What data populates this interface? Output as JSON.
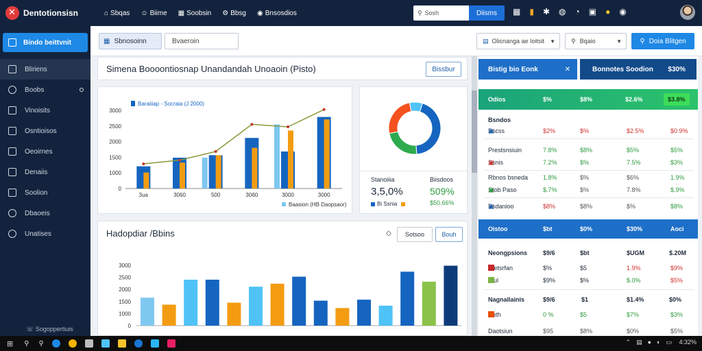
{
  "app": {
    "title": "Dentotionsisn"
  },
  "topnav": [
    {
      "label": "Sbqas",
      "icon": "home-icon"
    },
    {
      "label": "Biime",
      "icon": "user-icon"
    },
    {
      "label": "Soobsin",
      "icon": "grid-icon"
    },
    {
      "label": "Bbsg",
      "icon": "gear-icon"
    },
    {
      "label": "Bnsosdios",
      "icon": "bell-icon"
    }
  ],
  "topsearch": {
    "placeholder": "Sosh",
    "button": "Diisms"
  },
  "sidebar": {
    "primary": "Bindo beittvnit",
    "items": [
      {
        "label": "Bliriens",
        "icon": "list-icon"
      },
      {
        "label": "Boobs",
        "icon": "clock-icon"
      },
      {
        "label": "Vinoisits",
        "icon": "doc-icon"
      },
      {
        "label": "Osntioisos",
        "icon": "folder-icon"
      },
      {
        "label": "Oeoirnes",
        "icon": "chart-icon"
      },
      {
        "label": "Denaiis",
        "icon": "table-icon"
      },
      {
        "label": "Soolion",
        "icon": "calendar-icon"
      },
      {
        "label": "Dbaoeis",
        "icon": "link-icon"
      },
      {
        "label": "Unatises",
        "icon": "settings-icon"
      }
    ],
    "footer": "Sogoppertiuis"
  },
  "header": {
    "tab_label": "Sbnosoinn",
    "search_value": "Bvaeroin",
    "select1": "Olicnanga ae Ioitsit",
    "select2": "Bqaio",
    "action": "Doia Blitgen"
  },
  "overview": {
    "title": "Simena Boooontiosnap Unandandah Unoaoin (Pisto)",
    "button": "Bissbur"
  },
  "chart_data": [
    {
      "type": "bar",
      "title": "",
      "legend": "Baraiiiap - Socraia (J 2000)",
      "bottom_legend": "Baasion (HB Daopsaor)",
      "categories": [
        "3ua",
        "3060",
        "500",
        "3060",
        "3000",
        "3000"
      ],
      "yticks": [
        "3000",
        "2500",
        "2000",
        "1500",
        "1000",
        "0"
      ],
      "ylim": [
        0,
        3500
      ],
      "series": [
        {
          "name": "",
          "color": "#1565c0",
          "values": [
            900,
            1250,
            1350,
            2050,
            1500,
            2900
          ]
        },
        {
          "name": "",
          "color": "#f39c12",
          "values": [
            650,
            1050,
            1350,
            1650,
            2350,
            2800
          ]
        },
        {
          "name": "",
          "color": "#7ec8f0",
          "values": [
            0,
            0,
            1250,
            0,
            2600,
            0
          ]
        }
      ],
      "line": {
        "color": "#8a9a3a",
        "values": [
          1000,
          1150,
          1500,
          2600,
          2500,
          3200
        ]
      }
    },
    {
      "type": "pie",
      "slices": [
        {
          "color": "#1565c0",
          "value": 44
        },
        {
          "color": "#2eaa4f",
          "value": 23
        },
        {
          "color": "#f4511e",
          "value": 25
        },
        {
          "color": "#4fc3f7",
          "value": 8
        }
      ],
      "stat_left_label": "Stanoiiia",
      "stat_left_value": "3,5,0%",
      "stat_left_legend": "Bi Ssnia",
      "stat_right_label": "Biisdoos",
      "stat_right_value": "509%",
      "stat_right_sub": "$50.66%"
    },
    {
      "type": "bar",
      "title": "Hadopdiar /Bbins",
      "yticks": [
        "3000",
        "2500",
        "2000",
        "1500",
        "1000",
        "0"
      ],
      "ylim": [
        0,
        3500
      ],
      "values": [
        1400,
        1050,
        2300,
        2300,
        1150,
        1950,
        2100,
        2450,
        1250,
        880,
        1300,
        1000,
        2700,
        2200,
        3000
      ],
      "colors": [
        "#7ec8f0",
        "#f39c12",
        "#4fc3f7",
        "#1565c0",
        "#f39c12",
        "#4fc3f7",
        "#f39c12",
        "#1565c0",
        "#1565c0",
        "#f39c12",
        "#1565c0",
        "#4fc3f7",
        "#1565c0",
        "#8bc34a",
        "#0d3b7a"
      ]
    }
  ],
  "bottom_card": {
    "btn1": "Sotsoo",
    "btn2": "Bouh"
  },
  "right_panel": {
    "head1": {
      "label": "Bistig bio Eonk",
      "close": "✕"
    },
    "head2": {
      "label": "Bonnotes Soodion",
      "value": "$30%"
    },
    "green_row": {
      "label": "Odios",
      "c1": "$%",
      "c2": "$8%",
      "c3": "$2.6%",
      "c4": "$3.8%"
    },
    "section1_title": "Bsndos",
    "rows1": [
      {
        "label": "Bscss",
        "icon": "chart-icon",
        "c1": "$2%",
        "c2": "$%",
        "c3": "$2.5%",
        "c4": "$0.9%",
        "c1c": "red",
        "c2c": "red",
        "c3c": "red",
        "c4c": "red"
      },
      {
        "label": "Prestsnsiuin",
        "icon": "",
        "c1": "7.8%",
        "c2": "$8%",
        "c3": "$5%",
        "c4": "$5%",
        "c1c": "green",
        "c2c": "green",
        "c3c": "green",
        "c4c": "green"
      },
      {
        "label": "Ssnis",
        "icon": "image-icon",
        "c1": "7.2%",
        "c2": "$%",
        "c3": "7.5%",
        "c4": "$3%",
        "c1c": "green",
        "c2c": "green",
        "c3c": "green",
        "c4c": "green"
      },
      {
        "label": "Rbnos bsneda",
        "icon": "",
        "c1": "1.8%",
        "c2": "$%",
        "c3": "$6%",
        "c4": "1.9%",
        "c1c": "green",
        "c2c": "grey",
        "c3c": "grey",
        "c4c": "green"
      },
      {
        "label": "Stob Paso",
        "icon": "check-icon",
        "c1": "$.7%",
        "c2": "$%",
        "c3": "7.8%",
        "c4": "$.9%",
        "c1c": "green",
        "c2c": "grey",
        "c3c": "grey",
        "c4c": "green"
      },
      {
        "label": "Bsdanioo",
        "icon": "gear-icon",
        "c1": "$8%",
        "c2": "$8%",
        "c3": "$%",
        "c4": "$8%",
        "c1c": "red",
        "c2c": "grey",
        "c3c": "grey",
        "c4c": "green"
      }
    ],
    "head3": {
      "label": "Oistoo",
      "c1": "$bt",
      "c2": "$0%",
      "c3": "$30%",
      "c4": "Aoci"
    },
    "section2": {
      "label": "Neongpsions",
      "c1": "$9/6",
      "c2": "$bt",
      "c3": "$UGM",
      "c4": "$.20M"
    },
    "rows2": [
      {
        "label": "Stetsrfan",
        "color": "#c62828",
        "c1": "$%",
        "c2": "$5",
        "c3": "1.9%",
        "c4": "$9%",
        "c3c": "red",
        "c4c": "red"
      },
      {
        "label": "Biul",
        "color": "#7cb342",
        "c1": "$9%",
        "c2": "$%",
        "c3": "$.0%",
        "c4": "$5%",
        "c3c": "green",
        "c4c": "red"
      }
    ],
    "section3": {
      "label": "Nagnallainis",
      "c1": "$9/6",
      "c2": "$1",
      "c3": "$1.4%",
      "c4": "$0%"
    },
    "rows3": [
      {
        "label": "Buth",
        "color": "#e65100",
        "c1": "0 %",
        "c2": "$5",
        "c3": "$7%",
        "c4": "$3%",
        "c1c": "green",
        "c2c": "green",
        "c3c": "green",
        "c4c": "green"
      },
      {
        "label": "Daotsiun",
        "color": "",
        "c1": "$95",
        "c2": "$8%",
        "c3": "$0%",
        "c4": "$5%",
        "c1c": "grey",
        "c2c": "grey",
        "c3c": "grey",
        "c4c": "grey"
      }
    ]
  },
  "taskbar": {
    "time": "4:32%"
  }
}
